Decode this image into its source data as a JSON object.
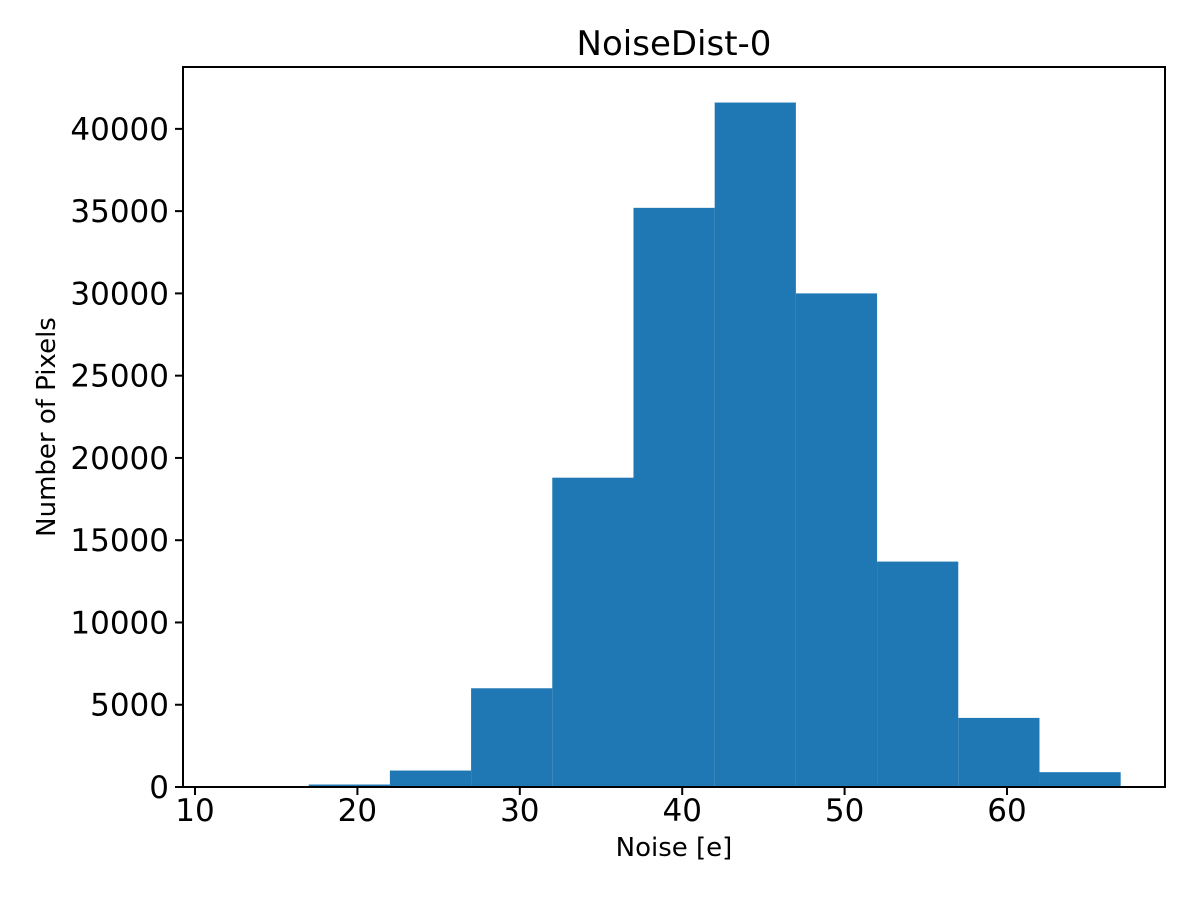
{
  "page": {
    "background": "#ffffff"
  },
  "chart_data": {
    "type": "bar",
    "subtype": "histogram",
    "title": "NoiseDist-0",
    "xlabel": "Noise [e]",
    "ylabel": "Number of Pixels",
    "bin_edges": [
      17,
      22,
      27,
      32,
      37,
      42,
      47,
      52,
      57,
      62,
      67
    ],
    "counts": [
      150,
      1000,
      6000,
      18800,
      35200,
      41600,
      30000,
      13700,
      4200,
      900
    ],
    "bar_color": "#1f77b4",
    "axis_color": "#000000",
    "text_color": "#000000",
    "xlim": [
      9.26,
      69.73
    ],
    "ylim": [
      0,
      43760
    ],
    "xticks": [
      10,
      20,
      30,
      40,
      50,
      60
    ],
    "yticks": [
      0,
      5000,
      10000,
      15000,
      20000,
      25000,
      30000,
      35000,
      40000
    ],
    "grid": false,
    "legend": "none"
  }
}
